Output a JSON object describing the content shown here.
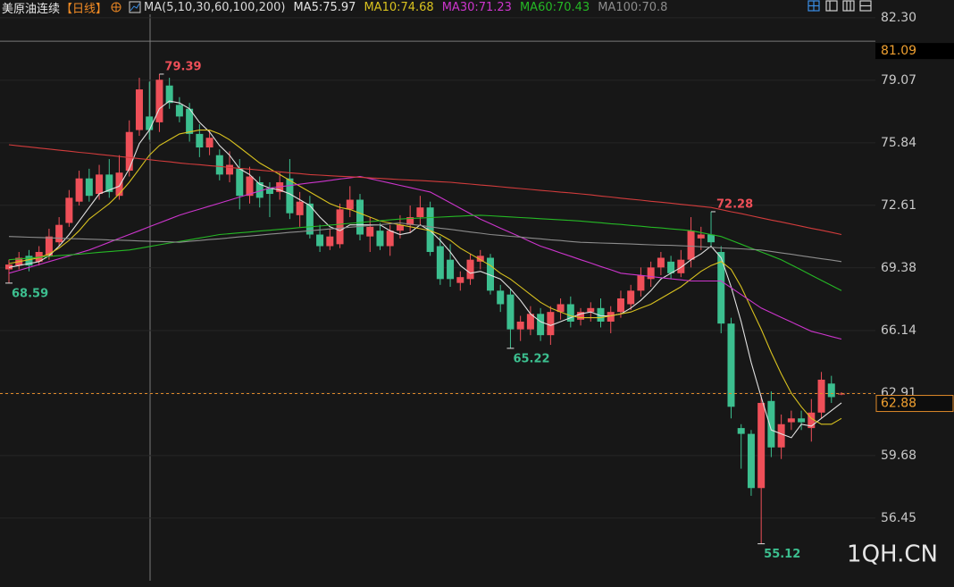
{
  "chart_data": {
    "type": "candlestick",
    "title": "美原油连续",
    "period": "【日线】",
    "indicator": "MA(5,10,30,60,100,200)",
    "up_color": "#ee4f58",
    "down_color": "#3cbf8f",
    "open": [
      69.3,
      69.5,
      70.0,
      69.7,
      70.0,
      70.7,
      71.7,
      72.8,
      74.0,
      73.2,
      74.2,
      73.1,
      74.4,
      76.5,
      77.2,
      76.9,
      78.8,
      77.8,
      77.6,
      76.3,
      75.6,
      75.2,
      74.2,
      74.5,
      73.1,
      73.8,
      73.5,
      73.3,
      74.0,
      72.1,
      72.7,
      71.1,
      70.5,
      70.6,
      72.4,
      72.9,
      71.0,
      71.3,
      70.5,
      71.3,
      71.6,
      72.0,
      72.5,
      70.5,
      69.8,
      68.6,
      68.8,
      69.7,
      69.9,
      68.2,
      68.0,
      66.2,
      66.2,
      67.0,
      65.9,
      67.1,
      67.5,
      66.7,
      67.1,
      67.3,
      66.6,
      67.1,
      67.5,
      68.2,
      68.8,
      69.4,
      69.7,
      69.1,
      69.8,
      70.9,
      71.1,
      70.2,
      66.5,
      61.1,
      60.8,
      58.0,
      62.5,
      60.1,
      61.4,
      61.6,
      61.1,
      61.9,
      63.4,
      62.85
    ],
    "high": [
      69.8,
      70.2,
      70.3,
      70.5,
      71.4,
      72.0,
      73.4,
      74.4,
      74.5,
      74.7,
      75.0,
      75.2,
      77.0,
      79.2,
      79.0,
      79.39,
      79.2,
      78.2,
      77.9,
      76.8,
      76.5,
      75.5,
      75.4,
      75.0,
      74.6,
      74.1,
      73.8,
      74.3,
      75.0,
      73.3,
      73.1,
      71.6,
      71.4,
      72.7,
      73.6,
      73.2,
      72.0,
      71.7,
      71.6,
      72.1,
      72.6,
      73.1,
      72.8,
      71.0,
      70.6,
      69.2,
      70.1,
      70.3,
      70.1,
      68.5,
      68.3,
      66.9,
      67.4,
      67.3,
      67.4,
      67.8,
      67.9,
      67.3,
      67.6,
      67.8,
      67.4,
      68.2,
      68.5,
      69.4,
      69.7,
      70.2,
      70.0,
      70.3,
      72.0,
      71.5,
      72.28,
      70.5,
      66.8,
      61.3,
      61.0,
      62.8,
      63.0,
      61.8,
      62.0,
      62.0,
      62.6,
      64.0,
      63.8,
      62.95
    ],
    "low": [
      68.59,
      69.3,
      69.2,
      69.5,
      69.8,
      70.5,
      71.5,
      72.6,
      72.8,
      72.9,
      73.0,
      72.9,
      74.1,
      76.2,
      76.0,
      76.4,
      77.6,
      76.9,
      75.9,
      75.1,
      75.2,
      73.9,
      73.8,
      72.4,
      72.7,
      72.5,
      72.0,
      72.9,
      71.9,
      71.5,
      70.9,
      70.2,
      70.3,
      70.4,
      72.0,
      70.8,
      70.2,
      70.3,
      70.0,
      70.9,
      71.2,
      71.6,
      70.0,
      68.5,
      68.4,
      68.2,
      68.5,
      69.3,
      68.0,
      67.1,
      65.22,
      65.6,
      65.9,
      65.6,
      65.4,
      66.7,
      66.3,
      66.4,
      66.6,
      66.3,
      66.0,
      66.8,
      67.2,
      67.9,
      68.4,
      69.0,
      68.8,
      68.9,
      69.4,
      70.3,
      70.5,
      66.0,
      61.6,
      59.0,
      57.6,
      55.12,
      59.6,
      59.5,
      61.0,
      61.0,
      60.4,
      61.6,
      62.4,
      62.8
    ],
    "close": [
      69.55,
      69.9,
      69.5,
      70.2,
      71.0,
      71.6,
      73.0,
      74.0,
      73.1,
      74.2,
      73.3,
      74.3,
      76.4,
      78.6,
      76.5,
      79.1,
      77.9,
      77.2,
      76.3,
      75.6,
      76.1,
      74.2,
      74.7,
      73.1,
      74.1,
      73.0,
      73.2,
      73.8,
      72.2,
      72.8,
      71.1,
      70.5,
      71.0,
      72.4,
      72.9,
      71.1,
      71.5,
      70.5,
      71.3,
      71.6,
      72.0,
      72.5,
      70.2,
      68.8,
      68.8,
      68.9,
      69.8,
      70.0,
      68.2,
      67.5,
      66.2,
      66.6,
      67.0,
      65.9,
      67.1,
      67.5,
      66.6,
      67.1,
      67.3,
      66.6,
      67.1,
      67.8,
      68.2,
      69.0,
      69.4,
      69.9,
      69.1,
      69.8,
      71.3,
      71.1,
      70.7,
      66.5,
      62.2,
      60.8,
      58.0,
      62.4,
      60.1,
      61.3,
      61.6,
      61.4,
      61.9,
      63.6,
      62.7,
      62.88
    ],
    "series": [
      {
        "name": "MA5:75.97",
        "color": "#e2e2e2",
        "values": [
          69.4,
          69.5,
          69.6,
          69.7,
          70.0,
          70.5,
          71.1,
          71.8,
          72.5,
          73.2,
          73.4,
          73.6,
          74.5,
          75.8,
          76.5,
          77.6,
          78.0,
          77.9,
          77.6,
          76.9,
          76.4,
          75.7,
          75.2,
          74.5,
          74.2,
          73.7,
          73.5,
          73.4,
          73.2,
          72.9,
          72.6,
          72.0,
          71.5,
          71.3,
          71.6,
          71.6,
          71.6,
          71.6,
          71.3,
          71.1,
          71.2,
          71.6,
          71.3,
          70.8,
          70.2,
          69.5,
          69.1,
          69.2,
          69.0,
          68.8,
          68.3,
          67.7,
          67.0,
          66.6,
          66.4,
          66.6,
          66.8,
          67.0,
          67.1,
          66.9,
          66.9,
          67.0,
          67.3,
          67.7,
          68.2,
          68.8,
          69.1,
          69.4,
          69.8,
          70.1,
          70.5,
          69.9,
          68.4,
          66.6,
          64.5,
          62.7,
          61.0,
          60.8,
          60.6,
          61.3,
          61.2,
          61.6,
          62.0,
          62.4
        ]
      },
      {
        "name": "MA10:74.68",
        "color": "#d9c21f",
        "values": [
          69.6,
          69.7,
          69.8,
          69.9,
          70.1,
          70.4,
          70.8,
          71.3,
          71.9,
          72.3,
          72.7,
          73.2,
          73.8,
          74.5,
          75.2,
          75.7,
          76.0,
          76.3,
          76.4,
          76.5,
          76.5,
          76.3,
          76.0,
          75.6,
          75.2,
          74.8,
          74.5,
          74.2,
          73.9,
          73.6,
          73.3,
          73.0,
          72.7,
          72.5,
          72.4,
          72.2,
          72.0,
          71.8,
          71.7,
          71.6,
          71.5,
          71.4,
          71.3,
          71.1,
          70.8,
          70.4,
          70.1,
          69.8,
          69.5,
          69.1,
          68.8,
          68.4,
          68.0,
          67.6,
          67.3,
          67.1,
          66.9,
          66.8,
          66.8,
          66.8,
          66.9,
          67.0,
          67.1,
          67.3,
          67.5,
          67.8,
          68.1,
          68.4,
          68.8,
          69.2,
          69.5,
          69.7,
          69.3,
          68.4,
          67.3,
          66.2,
          65.0,
          63.9,
          62.9,
          62.2,
          61.6,
          61.3,
          61.3,
          61.6
        ]
      },
      {
        "name": "MA30:71.23",
        "color": "#cc35cc",
        "values": [
          69.1,
          69.25,
          69.4,
          69.55,
          69.7,
          69.85,
          70.0,
          70.15,
          70.3,
          70.5,
          70.7,
          70.9,
          71.1,
          71.3,
          71.5,
          71.7,
          71.9,
          72.1,
          72.26,
          72.41,
          72.57,
          72.72,
          72.88,
          73.04,
          73.19,
          73.35,
          73.5,
          73.57,
          73.63,
          73.7,
          73.77,
          73.83,
          73.9,
          73.97,
          74.03,
          74.1,
          73.99,
          73.87,
          73.76,
          73.64,
          73.53,
          73.41,
          73.3,
          73.02,
          72.74,
          72.46,
          72.18,
          71.9,
          71.67,
          71.43,
          71.2,
          70.97,
          70.73,
          70.5,
          70.33,
          70.15,
          69.98,
          69.8,
          69.63,
          69.45,
          69.28,
          69.1,
          69.04,
          68.99,
          68.93,
          68.87,
          68.81,
          68.76,
          68.7,
          68.7,
          68.7,
          68.7,
          68.35,
          68.0,
          67.65,
          67.3,
          67.06,
          66.82,
          66.58,
          66.34,
          66.1,
          65.97,
          65.83,
          65.7
        ]
      },
      {
        "name": "MA60:70.43",
        "color": "#25b825",
        "values": [
          69.8,
          69.84,
          69.88,
          69.93,
          69.97,
          70.01,
          70.05,
          70.09,
          70.13,
          70.18,
          70.22,
          70.26,
          70.3,
          70.39,
          70.48,
          70.57,
          70.66,
          70.74,
          70.83,
          70.92,
          71.01,
          71.1,
          71.14,
          71.19,
          71.23,
          71.28,
          71.32,
          71.37,
          71.41,
          71.46,
          71.5,
          71.54,
          71.59,
          71.63,
          71.68,
          71.72,
          71.77,
          71.81,
          71.86,
          71.9,
          71.93,
          71.95,
          71.98,
          72.0,
          72.03,
          72.05,
          72.08,
          72.1,
          72.07,
          72.04,
          72.01,
          71.98,
          71.95,
          71.92,
          71.89,
          71.86,
          71.83,
          71.8,
          71.75,
          71.71,
          71.66,
          71.62,
          71.57,
          71.53,
          71.48,
          71.44,
          71.39,
          71.35,
          71.3,
          71.2,
          71.1,
          71.0,
          70.8,
          70.6,
          70.4,
          70.2,
          70.0,
          69.8,
          69.53,
          69.27,
          69.0,
          68.73,
          68.47,
          68.2
        ]
      },
      {
        "name": "MA100:70.8",
        "color": "#8c8c8c",
        "values": [
          71.0,
          70.98,
          70.96,
          70.95,
          70.93,
          70.91,
          70.89,
          70.88,
          70.86,
          70.84,
          70.82,
          70.81,
          70.79,
          70.77,
          70.75,
          70.74,
          70.72,
          70.7,
          70.75,
          70.79,
          70.84,
          70.88,
          70.93,
          70.98,
          71.02,
          71.07,
          71.12,
          71.16,
          71.21,
          71.25,
          71.3,
          71.34,
          71.39,
          71.43,
          71.48,
          71.52,
          71.57,
          71.61,
          71.66,
          71.7,
          71.63,
          71.57,
          71.5,
          71.43,
          71.37,
          71.3,
          71.23,
          71.17,
          71.1,
          71.06,
          71.01,
          70.97,
          70.92,
          70.88,
          70.83,
          70.79,
          70.74,
          70.7,
          70.68,
          70.66,
          70.65,
          70.63,
          70.61,
          70.59,
          70.57,
          70.55,
          70.54,
          70.52,
          70.5,
          70.47,
          70.44,
          70.41,
          70.39,
          70.36,
          70.33,
          70.3,
          70.23,
          70.15,
          70.08,
          70.0,
          69.93,
          69.85,
          69.78,
          69.7
        ]
      },
      {
        "color": "#d23c3c",
        "values": [
          75.74,
          75.68,
          75.63,
          75.57,
          75.52,
          75.46,
          75.41,
          75.35,
          75.3,
          75.24,
          75.19,
          75.13,
          75.08,
          75.02,
          74.97,
          74.91,
          74.86,
          74.8,
          74.75,
          74.71,
          74.66,
          74.62,
          74.57,
          74.52,
          74.48,
          74.43,
          74.38,
          74.34,
          74.29,
          74.25,
          74.2,
          74.17,
          74.14,
          74.11,
          74.09,
          74.06,
          74.03,
          74.0,
          73.97,
          73.94,
          73.91,
          73.89,
          73.86,
          73.83,
          73.8,
          73.75,
          73.71,
          73.66,
          73.62,
          73.57,
          73.52,
          73.48,
          73.43,
          73.38,
          73.34,
          73.29,
          73.25,
          73.2,
          73.15,
          73.09,
          73.04,
          72.98,
          72.93,
          72.88,
          72.82,
          72.77,
          72.72,
          72.66,
          72.61,
          72.55,
          72.5,
          72.39,
          72.28,
          72.18,
          72.07,
          71.96,
          71.85,
          71.75,
          71.64,
          71.53,
          71.42,
          71.32,
          71.21,
          71.1
        ]
      }
    ],
    "high_labels": [
      79.39,
      72.28
    ],
    "low_labels": [
      68.59,
      65.22,
      55.12
    ],
    "ylim": [
      53.21,
      83.22
    ],
    "yticks": [
      82.3,
      79.07,
      75.84,
      72.61,
      69.38,
      66.14,
      62.91,
      59.68,
      56.45
    ],
    "crosshair_price": 81.09,
    "last_price": 62.88,
    "grid": true
  },
  "watermark": "1QH.CN"
}
